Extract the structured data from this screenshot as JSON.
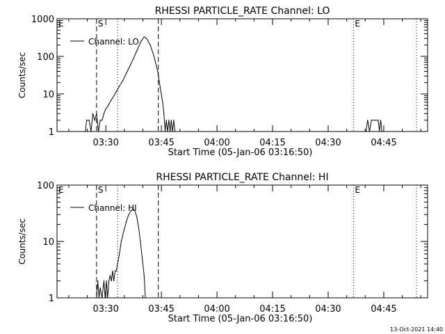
{
  "footer": {
    "timestamp": "13-Oct-2021 14:40"
  },
  "chart_data": [
    {
      "type": "line",
      "title": "RHESSI PARTICLE_RATE Channel: LO",
      "xlabel": "Start Time (05-Jan-06 03:16:50)",
      "ylabel": "Counts/sec",
      "y_scale": "log",
      "ylim": [
        1,
        1000
      ],
      "y_ticks": [
        1,
        10,
        100,
        1000
      ],
      "y_tick_labels": [
        "1",
        "10",
        "100",
        "1000"
      ],
      "xlim": [
        "03:16:50",
        "04:56:50"
      ],
      "x_ticks": [
        "03:30",
        "03:45",
        "04:00",
        "04:15",
        "04:30",
        "04:45"
      ],
      "legend": {
        "placement": "top-left",
        "entries": [
          "Channel: LO"
        ]
      },
      "vlines": [
        {
          "t": "03:27:30",
          "style": "dashed",
          "label": "S"
        },
        {
          "t": "03:33:10",
          "style": "dotted",
          "label": ""
        },
        {
          "t": "03:44:10",
          "style": "dashed",
          "label": ""
        },
        {
          "t": "04:36:50",
          "style": "dotted",
          "label": "E"
        },
        {
          "t": "04:53:50",
          "style": "dotted",
          "label": ""
        }
      ],
      "top_left_marker": "E",
      "series": [
        {
          "name": "Channel: LO",
          "segments": [
            [
              [
                "03:24:30",
                1
              ],
              [
                "03:24:50",
                2
              ],
              [
                "03:25:30",
                2
              ],
              [
                "03:26:00",
                1
              ],
              [
                "03:26:30",
                3
              ],
              [
                "03:27:00",
                2
              ],
              [
                "03:27:30",
                3
              ],
              [
                "03:28:00",
                1
              ],
              [
                "03:28:30",
                2
              ],
              [
                "03:29:00",
                2
              ],
              [
                "03:29:30",
                3
              ],
              [
                "03:30:00",
                4
              ],
              [
                "03:30:40",
                5
              ],
              [
                "03:31:30",
                7
              ],
              [
                "03:32:30",
                10
              ],
              [
                "03:33:30",
                15
              ],
              [
                "03:34:30",
                22
              ],
              [
                "03:35:30",
                35
              ],
              [
                "03:36:30",
                55
              ],
              [
                "03:37:30",
                90
              ],
              [
                "03:38:30",
                150
              ],
              [
                "03:39:30",
                250
              ],
              [
                "03:40:20",
                330
              ],
              [
                "03:41:00",
                300
              ],
              [
                "03:42:00",
                200
              ],
              [
                "03:43:00",
                100
              ],
              [
                "03:44:00",
                40
              ],
              [
                "03:44:40",
                15
              ],
              [
                "03:45:20",
                6
              ],
              [
                "03:45:40",
                3
              ],
              [
                "03:46:00",
                1
              ],
              [
                "03:46:20",
                2
              ],
              [
                "03:46:40",
                1
              ],
              [
                "03:47:00",
                2
              ],
              [
                "03:47:20",
                1
              ],
              [
                "03:47:40",
                2
              ],
              [
                "03:48:00",
                1
              ],
              [
                "03:48:20",
                2
              ],
              [
                "03:48:40",
                1
              ]
            ],
            [
              [
                "04:40:10",
                1
              ],
              [
                "04:40:40",
                2
              ],
              [
                "04:41:10",
                1
              ],
              [
                "04:41:40",
                2
              ],
              [
                "04:43:30",
                2
              ],
              [
                "04:43:50",
                1
              ],
              [
                "04:44:10",
                2
              ],
              [
                "04:44:30",
                1
              ]
            ]
          ]
        }
      ]
    },
    {
      "type": "line",
      "title": "RHESSI PARTICLE_RATE Channel: HI",
      "xlabel": "Start Time (05-Jan-06 03:16:50)",
      "ylabel": "Counts/sec",
      "y_scale": "log",
      "ylim": [
        1,
        100
      ],
      "y_ticks": [
        1,
        10,
        100
      ],
      "y_tick_labels": [
        "1",
        "10",
        "100"
      ],
      "xlim": [
        "03:16:50",
        "04:56:50"
      ],
      "x_ticks": [
        "03:30",
        "03:45",
        "04:00",
        "04:15",
        "04:30",
        "04:45"
      ],
      "legend": {
        "placement": "top-left",
        "entries": [
          "Channel: HI"
        ]
      },
      "vlines": [
        {
          "t": "03:27:30",
          "style": "dashed",
          "label": "S"
        },
        {
          "t": "03:33:10",
          "style": "dotted",
          "label": ""
        },
        {
          "t": "03:44:10",
          "style": "dashed",
          "label": ""
        },
        {
          "t": "04:36:50",
          "style": "dotted",
          "label": "E"
        },
        {
          "t": "04:53:50",
          "style": "dotted",
          "label": ""
        }
      ],
      "top_left_marker": "E",
      "series": [
        {
          "name": "Channel: HI",
          "segments": [
            [
              [
                "03:27:30",
                1
              ],
              [
                "03:27:50",
                2
              ],
              [
                "03:28:10",
                1
              ],
              [
                "03:28:30",
                1.5
              ],
              [
                "03:29:00",
                1
              ],
              [
                "03:29:30",
                2
              ],
              [
                "03:29:50",
                1
              ],
              [
                "03:30:10",
                2
              ],
              [
                "03:30:30",
                1
              ],
              [
                "03:30:50",
                2
              ],
              [
                "03:31:10",
                2.5
              ],
              [
                "03:31:30",
                2
              ],
              [
                "03:31:50",
                3
              ],
              [
                "03:32:10",
                2
              ],
              [
                "03:32:30",
                3
              ],
              [
                "03:32:50",
                3
              ],
              [
                "03:33:10",
                4
              ],
              [
                "03:33:40",
                6
              ],
              [
                "03:34:10",
                10
              ],
              [
                "03:34:50",
                15
              ],
              [
                "03:35:30",
                22
              ],
              [
                "03:36:10",
                30
              ],
              [
                "03:36:50",
                35
              ],
              [
                "03:37:20",
                38
              ],
              [
                "03:37:50",
                35
              ],
              [
                "03:38:20",
                28
              ],
              [
                "03:38:50",
                18
              ],
              [
                "03:39:20",
                10
              ],
              [
                "03:39:50",
                5
              ],
              [
                "03:40:20",
                2.5
              ],
              [
                "03:40:40",
                1
              ]
            ]
          ]
        }
      ]
    }
  ]
}
